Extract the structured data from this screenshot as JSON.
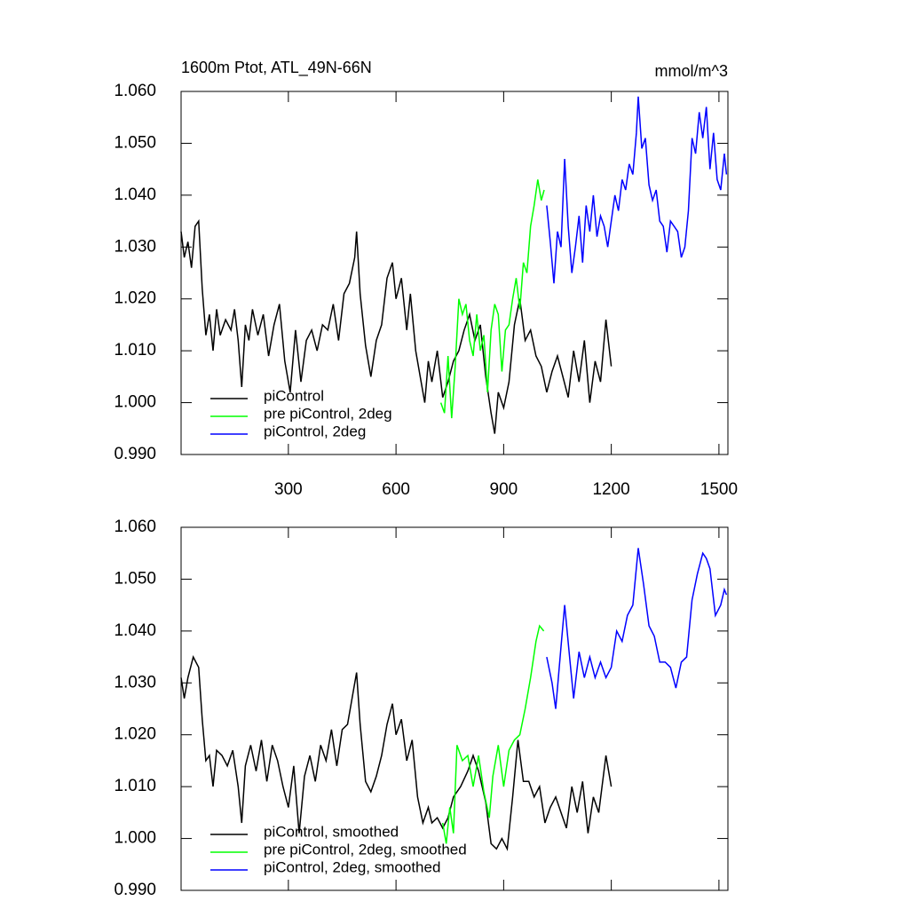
{
  "chart_data": [
    {
      "type": "line",
      "title": "1600m Ptot, ATL_49N-66N",
      "units": "mmol/m^3",
      "xlim": [
        1,
        1525
      ],
      "xticks": [
        300,
        600,
        900,
        1200,
        1500
      ],
      "show_xtick_labels": true,
      "ylim": [
        0.99,
        1.06
      ],
      "yticks": [
        {
          "value": 0.99,
          "label": "0.990"
        },
        {
          "value": 1.0,
          "label": "1.000"
        },
        {
          "value": 1.01,
          "label": "1.010"
        },
        {
          "value": 1.02,
          "label": "1.020"
        },
        {
          "value": 1.03,
          "label": "1.030"
        },
        {
          "value": 1.04,
          "label": "1.040"
        },
        {
          "value": 1.05,
          "label": "1.050"
        },
        {
          "value": 1.06,
          "label": "1.060"
        }
      ],
      "legend": "lower left",
      "series": [
        {
          "name": "piControl",
          "color": "#000000",
          "x": [
            1,
            10,
            20,
            30,
            40,
            50,
            60,
            70,
            80,
            90,
            100,
            110,
            125,
            140,
            150,
            160,
            170,
            180,
            190,
            200,
            215,
            230,
            245,
            260,
            275,
            290,
            305,
            320,
            335,
            350,
            365,
            380,
            395,
            410,
            425,
            440,
            455,
            470,
            485,
            490,
            500,
            515,
            530,
            545,
            560,
            575,
            590,
            600,
            615,
            630,
            640,
            655,
            670,
            680,
            690,
            700,
            715,
            730,
            745,
            760,
            775,
            790,
            805,
            820,
            835,
            850,
            865,
            875,
            885,
            900,
            915,
            930,
            945,
            960,
            975,
            990,
            1005,
            1020,
            1035,
            1050,
            1065,
            1080,
            1095,
            1110,
            1125,
            1140,
            1155,
            1170,
            1185,
            1200
          ],
          "values": [
            1.033,
            1.028,
            1.031,
            1.026,
            1.034,
            1.035,
            1.022,
            1.013,
            1.017,
            1.01,
            1.018,
            1.013,
            1.016,
            1.014,
            1.018,
            1.012,
            1.003,
            1.015,
            1.012,
            1.018,
            1.013,
            1.017,
            1.009,
            1.015,
            1.019,
            1.008,
            1.002,
            1.014,
            1.004,
            1.012,
            1.014,
            1.01,
            1.015,
            1.014,
            1.019,
            1.012,
            1.021,
            1.023,
            1.028,
            1.033,
            1.021,
            1.011,
            1.005,
            1.012,
            1.015,
            1.024,
            1.027,
            1.02,
            1.024,
            1.014,
            1.021,
            1.01,
            1.004,
            1.0,
            1.008,
            1.004,
            1.01,
            1.001,
            1.004,
            1.008,
            1.01,
            1.014,
            1.017,
            1.012,
            1.015,
            1.005,
            0.998,
            0.994,
            1.002,
            0.999,
            1.004,
            1.015,
            1.02,
            1.012,
            1.014,
            1.009,
            1.007,
            1.002,
            1.006,
            1.009,
            1.005,
            1.001,
            1.01,
            1.004,
            1.012,
            1.0,
            1.008,
            1.004,
            1.016,
            1.007
          ]
        },
        {
          "name": "pre piControl, 2deg",
          "color": "#00ff00",
          "x": [
            725,
            735,
            745,
            755,
            765,
            775,
            785,
            795,
            805,
            815,
            825,
            835,
            845,
            855,
            865,
            875,
            885,
            895,
            905,
            915,
            925,
            935,
            945,
            955,
            965,
            975,
            985,
            995,
            1005,
            1013
          ],
          "values": [
            1.0,
            0.998,
            1.009,
            0.997,
            1.007,
            1.02,
            1.017,
            1.019,
            1.012,
            1.009,
            1.017,
            1.01,
            1.013,
            1.002,
            1.014,
            1.019,
            1.017,
            1.006,
            1.014,
            1.015,
            1.02,
            1.024,
            1.018,
            1.027,
            1.025,
            1.034,
            1.038,
            1.043,
            1.039,
            1.041
          ]
        },
        {
          "name": "piControl, 2deg",
          "color": "#0000ff",
          "x": [
            1020,
            1030,
            1040,
            1050,
            1060,
            1070,
            1080,
            1090,
            1100,
            1110,
            1120,
            1130,
            1140,
            1150,
            1160,
            1170,
            1180,
            1190,
            1200,
            1210,
            1220,
            1230,
            1240,
            1250,
            1260,
            1270,
            1275,
            1285,
            1295,
            1305,
            1315,
            1325,
            1335,
            1345,
            1355,
            1365,
            1375,
            1385,
            1395,
            1405,
            1415,
            1425,
            1435,
            1445,
            1455,
            1465,
            1475,
            1485,
            1495,
            1505,
            1515,
            1521
          ],
          "values": [
            1.038,
            1.031,
            1.023,
            1.033,
            1.03,
            1.047,
            1.034,
            1.025,
            1.03,
            1.036,
            1.027,
            1.038,
            1.033,
            1.04,
            1.032,
            1.036,
            1.034,
            1.03,
            1.035,
            1.04,
            1.037,
            1.043,
            1.041,
            1.046,
            1.044,
            1.052,
            1.059,
            1.049,
            1.051,
            1.042,
            1.039,
            1.041,
            1.035,
            1.034,
            1.029,
            1.035,
            1.034,
            1.033,
            1.028,
            1.03,
            1.037,
            1.051,
            1.048,
            1.056,
            1.051,
            1.057,
            1.045,
            1.052,
            1.043,
            1.041,
            1.048,
            1.044
          ]
        }
      ]
    },
    {
      "type": "line",
      "xlim": [
        1,
        1525
      ],
      "xticks": [
        300,
        600,
        900,
        1200,
        1500
      ],
      "show_xtick_labels": false,
      "ylim": [
        0.99,
        1.06
      ],
      "yticks": [
        {
          "value": 0.99,
          "label": "0.990"
        },
        {
          "value": 1.0,
          "label": "1.000"
        },
        {
          "value": 1.01,
          "label": "1.010"
        },
        {
          "value": 1.02,
          "label": "1.020"
        },
        {
          "value": 1.03,
          "label": "1.030"
        },
        {
          "value": 1.04,
          "label": "1.040"
        },
        {
          "value": 1.05,
          "label": "1.050"
        },
        {
          "value": 1.06,
          "label": "1.060"
        }
      ],
      "legend": "lower left",
      "series": [
        {
          "name": "piControl, smoothed",
          "color": "#000000",
          "x": [
            1,
            10,
            20,
            35,
            50,
            60,
            70,
            80,
            90,
            100,
            115,
            130,
            145,
            160,
            170,
            180,
            195,
            210,
            225,
            240,
            255,
            270,
            285,
            300,
            315,
            330,
            345,
            360,
            375,
            390,
            405,
            420,
            435,
            450,
            465,
            480,
            490,
            500,
            515,
            530,
            545,
            560,
            575,
            590,
            600,
            615,
            630,
            645,
            660,
            675,
            690,
            700,
            715,
            730,
            745,
            760,
            780,
            800,
            815,
            830,
            850,
            865,
            880,
            895,
            910,
            925,
            940,
            955,
            970,
            985,
            1000,
            1015,
            1030,
            1045,
            1060,
            1075,
            1090,
            1105,
            1120,
            1135,
            1150,
            1165,
            1185,
            1200
          ],
          "values": [
            1.031,
            1.027,
            1.031,
            1.035,
            1.033,
            1.023,
            1.015,
            1.016,
            1.01,
            1.017,
            1.016,
            1.014,
            1.017,
            1.01,
            1.003,
            1.014,
            1.018,
            1.013,
            1.019,
            1.011,
            1.018,
            1.015,
            1.01,
            1.006,
            1.014,
            1.001,
            1.012,
            1.016,
            1.011,
            1.018,
            1.015,
            1.021,
            1.014,
            1.021,
            1.022,
            1.028,
            1.032,
            1.022,
            1.011,
            1.009,
            1.012,
            1.016,
            1.022,
            1.026,
            1.02,
            1.023,
            1.015,
            1.019,
            1.008,
            1.003,
            1.006,
            1.003,
            1.004,
            1.002,
            1.004,
            1.008,
            1.01,
            1.013,
            1.016,
            1.013,
            1.007,
            0.999,
            0.998,
            1.0,
            0.998,
            1.008,
            1.019,
            1.011,
            1.011,
            1.008,
            1.01,
            1.003,
            1.006,
            1.008,
            1.005,
            1.002,
            1.01,
            1.005,
            1.011,
            1.001,
            1.008,
            1.005,
            1.016,
            1.01
          ]
        },
        {
          "name": "pre piControl, 2deg, smoothed",
          "color": "#00ff00",
          "x": [
            730,
            740,
            750,
            760,
            770,
            785,
            800,
            815,
            830,
            845,
            860,
            870,
            885,
            900,
            915,
            930,
            945,
            960,
            975,
            990,
            1000,
            1012
          ],
          "values": [
            1.003,
            0.999,
            1.006,
            1.001,
            1.018,
            1.015,
            1.016,
            1.01,
            1.016,
            1.009,
            1.004,
            1.012,
            1.018,
            1.01,
            1.017,
            1.019,
            1.02,
            1.025,
            1.031,
            1.038,
            1.041,
            1.04
          ]
        },
        {
          "name": "piControl, 2deg, smoothed",
          "color": "#0000ff",
          "x": [
            1020,
            1035,
            1045,
            1060,
            1070,
            1085,
            1095,
            1110,
            1125,
            1140,
            1155,
            1170,
            1185,
            1200,
            1215,
            1230,
            1245,
            1260,
            1275,
            1290,
            1305,
            1320,
            1335,
            1350,
            1365,
            1380,
            1395,
            1410,
            1425,
            1440,
            1455,
            1465,
            1475,
            1490,
            1505,
            1515,
            1521
          ],
          "values": [
            1.035,
            1.03,
            1.025,
            1.037,
            1.045,
            1.034,
            1.027,
            1.036,
            1.031,
            1.035,
            1.031,
            1.034,
            1.031,
            1.033,
            1.04,
            1.038,
            1.043,
            1.045,
            1.056,
            1.049,
            1.041,
            1.039,
            1.034,
            1.034,
            1.033,
            1.029,
            1.034,
            1.035,
            1.046,
            1.051,
            1.055,
            1.054,
            1.052,
            1.043,
            1.045,
            1.048,
            1.047
          ]
        }
      ]
    }
  ]
}
